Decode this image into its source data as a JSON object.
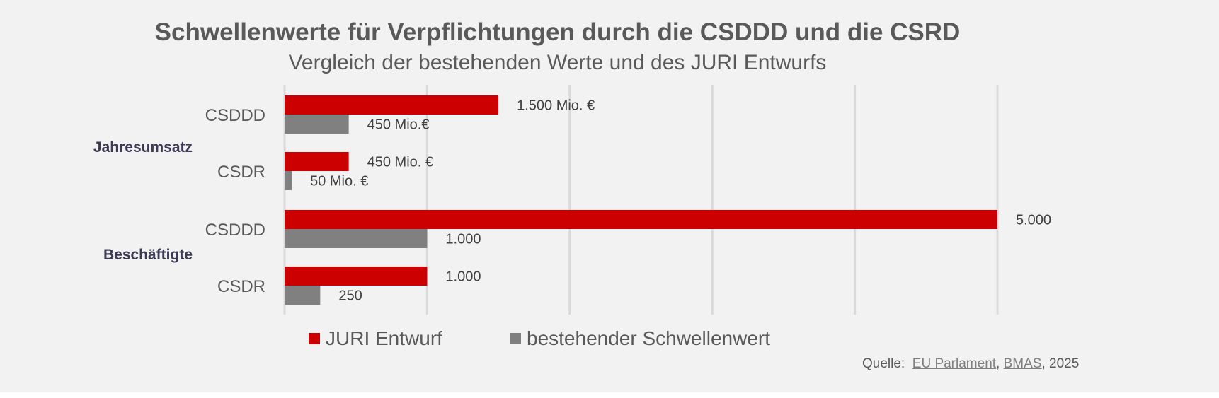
{
  "chart_data": {
    "type": "bar",
    "orientation": "horizontal",
    "title": "Schwellenwerte für Verpflichtungen durch die CSDDD und die CSRD",
    "subtitle": "Vergleich der bestehenden Werte und des JURI Entwurfs",
    "groups": [
      {
        "label": "Jahresumsatz",
        "categories": [
          "CSDDD",
          "CSDR"
        ]
      },
      {
        "label": "Beschäftigte",
        "categories": [
          "CSDDD",
          "CSDR"
        ]
      }
    ],
    "categories": [
      "Jahresumsatz CSDDD",
      "Jahresumsatz CSDR",
      "Beschäftigte CSDDD",
      "Beschäftigte CSDR"
    ],
    "series": [
      {
        "name": "JURI Entwurf",
        "color": "#cc0000",
        "values": [
          1500,
          450,
          5000,
          1000
        ],
        "labels": [
          "1.500 Mio. €",
          "450 Mio. €",
          "5.000",
          "1.000"
        ]
      },
      {
        "name": "bestehender Schwellenwert",
        "color": "#808080",
        "values": [
          450,
          50,
          1000,
          250
        ],
        "labels": [
          "450 Mio.€",
          "50 Mio. €",
          "1.000",
          "250"
        ]
      }
    ],
    "xlim": [
      0,
      5000
    ],
    "grid": true,
    "legend": "bottom"
  },
  "source": {
    "prefix": "Quelle:",
    "link1": "EU Parlament",
    "sep": ",",
    "link2": "BMAS",
    "suffix": ", 2025"
  }
}
